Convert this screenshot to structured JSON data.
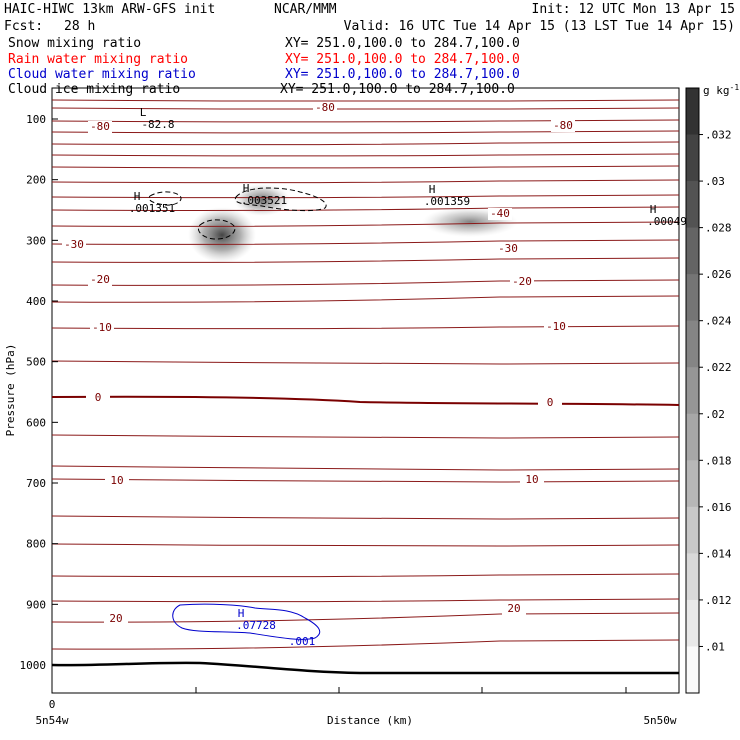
{
  "header": {
    "title_left": "HAIC-HIWC 13km ARW-GFS init",
    "title_center": "NCAR/MMM",
    "init": "Init: 12 UTC Mon 13 Apr 15",
    "fcst_label": "Fcst:",
    "fcst_value": "28 h",
    "valid": "Valid: 16 UTC Tue 14 Apr 15 (13 LST Tue 14 Apr 15)"
  },
  "chart_data": {
    "type": "contour",
    "x_axis": {
      "label": "Distance (km)",
      "ticks": [
        "0"
      ],
      "start_label": "5n54w",
      "end_label": "5n50w"
    },
    "y_axis": {
      "label": "Pressure (hPa)",
      "ticks": [
        100,
        200,
        300,
        400,
        500,
        600,
        700,
        800,
        900,
        1000
      ],
      "range": [
        1050,
        60
      ]
    },
    "fields": [
      {
        "name": "Snow mixing ratio",
        "cross_section": "XY= 251.0,100.0 to 284.7,100.0",
        "color": "#000000"
      },
      {
        "name": "Rain water mixing ratio",
        "cross_section": "XY= 251.0,100.0 to 284.7,100.0",
        "color": "#ff0000"
      },
      {
        "name": "Cloud water mixing ratio",
        "cross_section": "XY= 251.0,100.0 to 284.7,100.0",
        "color": "#0000cc"
      },
      {
        "name": "Cloud ice mixing ratio",
        "cross_section": "XY= 251.0,100.0 to 284.7,100.0",
        "color": "#000000"
      }
    ],
    "colorbar": {
      "unit": "g kg",
      "unit_exp": "-1",
      "ticks": [
        ".01",
        ".012",
        ".014",
        ".016",
        ".018",
        ".02",
        ".022",
        ".024",
        ".026",
        ".028",
        ".03",
        ".032"
      ]
    },
    "temperature_contour_labels": [
      "-80",
      "-40",
      "-30",
      "-20",
      "-10",
      "0",
      "10",
      "20"
    ],
    "annotations": [
      {
        "text": "L",
        "value": "-82.8"
      },
      {
        "text": "H",
        "value": ".001351"
      },
      {
        "text": "H",
        "value": ".003521"
      },
      {
        "text": "H",
        "value": ".001359"
      },
      {
        "text": "H",
        "value": ".00049"
      },
      {
        "text": "H",
        "value": ".07728"
      },
      {
        "text": "",
        "value": ".001"
      }
    ]
  }
}
